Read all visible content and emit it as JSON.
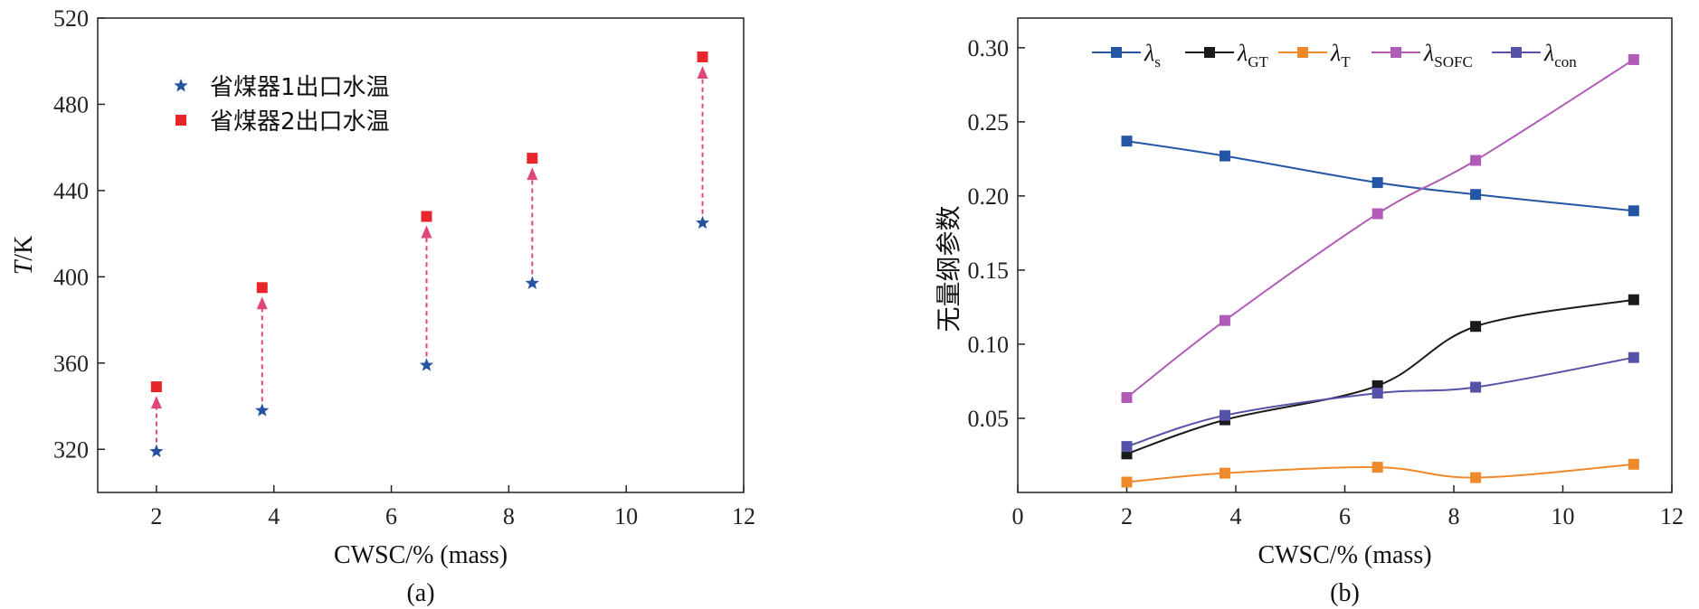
{
  "chart_data": [
    {
      "panel_label": "(a)",
      "type": "scatter",
      "xlabel": "CWSC/% (mass)",
      "ylabel_italic": "T",
      "ylabel_rest": "/K",
      "xlim": [
        1,
        12
      ],
      "ylim": [
        300,
        520
      ],
      "xticks": [
        2,
        4,
        6,
        8,
        10,
        12
      ],
      "yticks": [
        320,
        360,
        400,
        440,
        480,
        520
      ],
      "legend_position": "top-left",
      "series": [
        {
          "name": "省煤器1出口水温",
          "marker": "star",
          "color": "#2553a0",
          "x": [
            2.0,
            3.8,
            6.6,
            8.4,
            11.3
          ],
          "y": [
            319,
            338,
            359,
            397,
            425
          ]
        },
        {
          "name": "省煤器2出口水温",
          "marker": "square",
          "color": "#e8262a",
          "x": [
            2.0,
            3.8,
            6.6,
            8.4,
            11.3
          ],
          "y": [
            349,
            395,
            428,
            455,
            502
          ]
        }
      ],
      "annotations": "dashed pink arrows from series 1 point up to series 2 point",
      "arrow_color": "#e0457b"
    },
    {
      "panel_label": "(b)",
      "type": "line",
      "xlabel": "CWSC/% (mass)",
      "ylabel": "无量纲参数",
      "xlim": [
        0,
        12
      ],
      "ylim": [
        0,
        0.32
      ],
      "xticks": [
        0,
        2,
        4,
        6,
        8,
        10,
        12
      ],
      "yticks": [
        0.05,
        0.1,
        0.15,
        0.2,
        0.25,
        0.3
      ],
      "ytick_labels": [
        "0.05",
        "0.10",
        "0.15",
        "0.20",
        "0.25",
        "0.30"
      ],
      "legend_position": "top",
      "x": [
        2.0,
        3.8,
        6.6,
        8.4,
        11.3
      ],
      "series": [
        {
          "name": "λ",
          "sub": "s",
          "color": "#2456a6",
          "values": [
            0.237,
            0.227,
            0.209,
            0.201,
            0.19
          ]
        },
        {
          "name": "λ",
          "sub": "GT",
          "color": "#1a1a1a",
          "values": [
            0.026,
            0.049,
            0.072,
            0.112,
            0.13
          ]
        },
        {
          "name": "λ",
          "sub": "T",
          "color": "#ef8a2c",
          "values": [
            0.007,
            0.013,
            0.017,
            0.01,
            0.019
          ]
        },
        {
          "name": "λ",
          "sub": "SOFC",
          "color": "#b05bb7",
          "values": [
            0.064,
            0.116,
            0.188,
            0.224,
            0.292
          ]
        },
        {
          "name": "λ",
          "sub": "con",
          "color": "#5552a8",
          "values": [
            0.031,
            0.052,
            0.067,
            0.071,
            0.091
          ]
        }
      ]
    }
  ]
}
